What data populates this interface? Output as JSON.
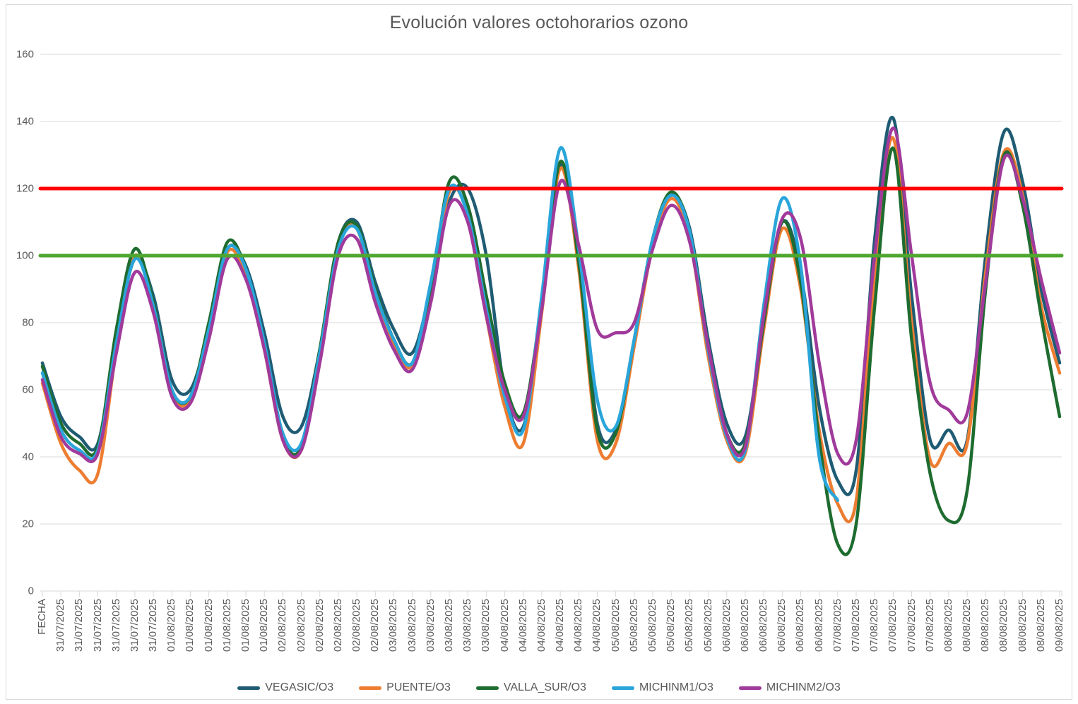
{
  "chart_data": {
    "type": "line",
    "title": "Evolución valores octohorarios ozono",
    "x_axis_header": "FECHA",
    "x_categories": [
      "FECHA",
      "31/07/2025",
      "31/07/2025",
      "31/07/2025",
      "31/07/2025",
      "31/07/2025",
      "31/07/2025",
      "01/08/2025",
      "01/08/2025",
      "01/08/2025",
      "01/08/2025",
      "01/08/2025",
      "01/08/2025",
      "02/08/2025",
      "02/08/2025",
      "02/08/2025",
      "02/08/2025",
      "02/08/2025",
      "02/08/2025",
      "03/08/2025",
      "03/08/2025",
      "03/08/2025",
      "03/08/2025",
      "03/08/2025",
      "03/08/2025",
      "04/08/2025",
      "04/08/2025",
      "04/08/2025",
      "04/08/2025",
      "04/08/2025",
      "04/08/2025",
      "05/08/2025",
      "05/08/2025",
      "05/08/2025",
      "05/08/2025",
      "05/08/2025",
      "05/08/2025",
      "06/08/2025",
      "06/08/2025",
      "06/08/2025",
      "06/08/2025",
      "06/08/2025",
      "06/08/2025",
      "07/08/2025",
      "07/08/2025",
      "07/08/2025",
      "07/08/2025",
      "07/08/2025",
      "07/08/2025",
      "08/08/2025",
      "08/08/2025",
      "08/08/2025",
      "08/08/2025",
      "08/08/2025",
      "08/08/2025",
      "09/08/2025"
    ],
    "ylim": [
      0,
      160
    ],
    "y_ticks": [
      0,
      20,
      40,
      60,
      80,
      100,
      120,
      140,
      160
    ],
    "grid": true,
    "legend_position": "bottom",
    "reference_lines": [
      {
        "value": 120,
        "color": "#FF0000"
      },
      {
        "value": 100,
        "color": "#4EA72E"
      }
    ],
    "series": [
      {
        "name": "VEGASIC/O3",
        "color": "#1F5C73",
        "values": [
          68,
          52,
          46,
          44,
          75,
          99,
          88,
          63,
          60,
          78,
          102,
          97,
          77,
          52,
          49,
          72,
          104,
          110,
          92,
          78,
          71,
          90,
          116,
          120,
          100,
          60,
          49,
          85,
          127,
          100,
          50,
          48,
          74,
          104,
          118,
          108,
          75,
          50,
          46,
          80,
          110,
          95,
          55,
          33,
          36,
          105,
          141,
          88,
          45,
          48,
          45,
          100,
          137,
          122,
          90,
          68
        ]
      },
      {
        "name": "PUENTE/O3",
        "color": "#ED7D31",
        "values": [
          62,
          44,
          36,
          35,
          72,
          100,
          84,
          59,
          57,
          76,
          101,
          94,
          72,
          45,
          42,
          70,
          103,
          108,
          88,
          74,
          67,
          88,
          119,
          112,
          82,
          55,
          44,
          83,
          126,
          96,
          45,
          44,
          73,
          103,
          117,
          105,
          70,
          45,
          41,
          78,
          108,
          90,
          48,
          26,
          27,
          95,
          135,
          80,
          39,
          44,
          44,
          95,
          131,
          118,
          85,
          65
        ]
      },
      {
        "name": "VALLA_SUR/O3",
        "color": "#1E6C30",
        "values": [
          67,
          50,
          44,
          43,
          78,
          102,
          86,
          60,
          58,
          80,
          104,
          96,
          74,
          46,
          43,
          72,
          104,
          109,
          90,
          75,
          68,
          90,
          122,
          115,
          88,
          62,
          53,
          86,
          128,
          98,
          48,
          47,
          75,
          105,
          119,
          107,
          72,
          47,
          44,
          80,
          110,
          92,
          45,
          14,
          20,
          85,
          132,
          75,
          35,
          21,
          30,
          90,
          130,
          115,
          82,
          52
        ]
      },
      {
        "name": "MICHINM1/O3",
        "color": "#29A5DA",
        "values": [
          65,
          48,
          42,
          42,
          74,
          99,
          85,
          60,
          58,
          78,
          102,
          96,
          74,
          47,
          44,
          71,
          102,
          108,
          89,
          75,
          68,
          92,
          120,
          112,
          84,
          58,
          48,
          88,
          132,
          102,
          57,
          49,
          75,
          105,
          118,
          107,
          72,
          46,
          42,
          85,
          117,
          97,
          40,
          27,
          null,
          null,
          null,
          null,
          null,
          null,
          null,
          null,
          null,
          null,
          null,
          null
        ]
      },
      {
        "name": "MICHINM2/O3",
        "color": "#A03A9B",
        "values": [
          63,
          46,
          41,
          41,
          71,
          95,
          83,
          58,
          56,
          75,
          99,
          93,
          72,
          45,
          42,
          68,
          100,
          105,
          86,
          72,
          66,
          86,
          115,
          110,
          82,
          60,
          52,
          84,
          122,
          103,
          78,
          77,
          80,
          102,
          115,
          104,
          73,
          47,
          43,
          82,
          111,
          105,
          68,
          41,
          45,
          100,
          138,
          100,
          62,
          54,
          53,
          92,
          129,
          117,
          93,
          71
        ]
      }
    ]
  },
  "legend": {
    "items": [
      {
        "label": "VEGASIC/O3"
      },
      {
        "label": "PUENTE/O3"
      },
      {
        "label": "VALLA_SUR/O3"
      },
      {
        "label": "MICHINM1/O3"
      },
      {
        "label": "MICHINM2/O3"
      }
    ]
  },
  "colors": {
    "grid": "#D9D9D9",
    "axis_text": "#595959",
    "title_text": "#595959",
    "chart_border": "#D9D9D9"
  }
}
